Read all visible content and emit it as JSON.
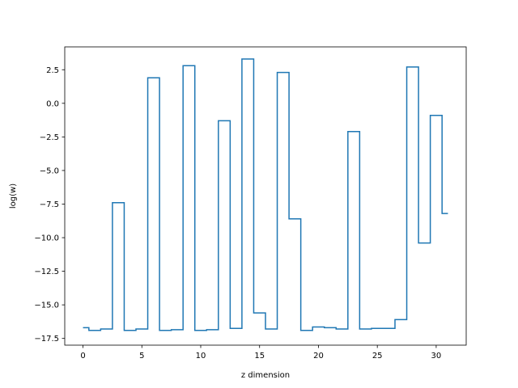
{
  "chart_data": {
    "type": "line",
    "step": "mid",
    "title": "",
    "xlabel": "z dimension",
    "ylabel": "log(w)",
    "xlim": [
      -1.55,
      32.55
    ],
    "ylim": [
      -18.0,
      4.2
    ],
    "xticks": [
      0,
      5,
      10,
      15,
      20,
      25,
      30
    ],
    "yticks": [
      2.5,
      0.0,
      -2.5,
      -5.0,
      -7.5,
      -10.0,
      -12.5,
      -15.0,
      -17.5
    ],
    "grid": false,
    "legend": "none",
    "series_color": "#1f77b4",
    "x": [
      0,
      1,
      2,
      3,
      4,
      5,
      6,
      7,
      8,
      9,
      10,
      11,
      12,
      13,
      14,
      15,
      16,
      17,
      18,
      19,
      20,
      21,
      22,
      23,
      24,
      25,
      26,
      27,
      28,
      29,
      30,
      31
    ],
    "values": [
      -16.7,
      -16.9,
      -16.8,
      -7.4,
      -16.9,
      -16.8,
      1.9,
      -16.9,
      -16.85,
      2.8,
      -16.9,
      -16.85,
      -1.3,
      -16.75,
      3.3,
      -15.6,
      -16.8,
      2.3,
      -8.6,
      -16.9,
      -16.65,
      -16.7,
      -16.8,
      -2.1,
      -16.8,
      -16.75,
      -16.75,
      -16.1,
      2.7,
      -10.4,
      -0.9,
      -8.2
    ]
  }
}
